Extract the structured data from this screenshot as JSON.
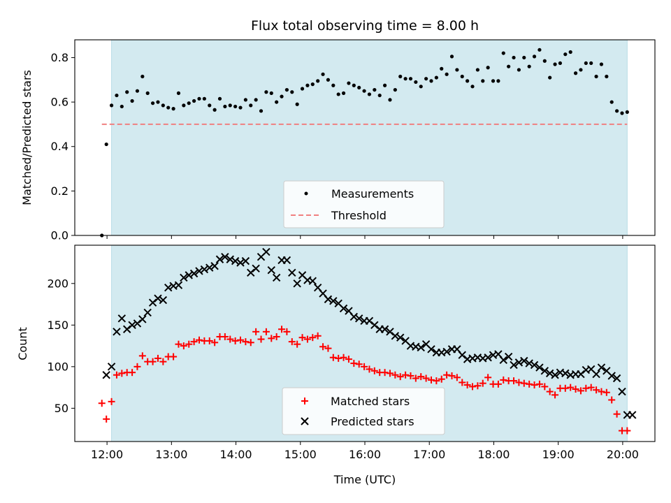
{
  "chart_data": [
    {
      "type": "scatter",
      "title": "Flux total observing time = 8.00 h",
      "xlabel": "",
      "ylabel": "Matched/Predicted stars",
      "xlim": [
        11.5,
        20.5
      ],
      "ylim": [
        0.0,
        0.88
      ],
      "yticks": [
        0.0,
        0.2,
        0.4,
        0.6,
        0.8
      ],
      "ytick_labels": [
        "0.0",
        "0.2",
        "0.4",
        "0.6",
        "0.8"
      ],
      "observing_window": [
        12.07,
        20.07
      ],
      "window_color": "#d3eaf0",
      "legend_position": "lower-center",
      "series": [
        {
          "name": "Measurements",
          "marker": "dot",
          "color": "#000000",
          "x": [
            11.92,
            11.99,
            12.07,
            12.15,
            12.23,
            12.31,
            12.39,
            12.47,
            12.55,
            12.63,
            12.71,
            12.79,
            12.87,
            12.95,
            13.03,
            13.11,
            13.19,
            13.27,
            13.35,
            13.43,
            13.51,
            13.59,
            13.67,
            13.75,
            13.83,
            13.91,
            13.99,
            14.07,
            14.15,
            14.23,
            14.31,
            14.39,
            14.47,
            14.55,
            14.63,
            14.71,
            14.79,
            14.87,
            14.95,
            15.03,
            15.11,
            15.19,
            15.27,
            15.35,
            15.43,
            15.51,
            15.59,
            15.67,
            15.75,
            15.83,
            15.91,
            15.99,
            16.07,
            16.15,
            16.23,
            16.31,
            16.39,
            16.47,
            16.55,
            16.63,
            16.71,
            16.79,
            16.87,
            16.95,
            17.03,
            17.11,
            17.19,
            17.27,
            17.35,
            17.43,
            17.51,
            17.59,
            17.67,
            17.75,
            17.83,
            17.91,
            17.99,
            18.07,
            18.15,
            18.23,
            18.31,
            18.39,
            18.47,
            18.55,
            18.63,
            18.71,
            18.79,
            18.87,
            18.95,
            19.03,
            19.11,
            19.19,
            19.27,
            19.35,
            19.43,
            19.51,
            19.59,
            19.67,
            19.75,
            19.83,
            19.91,
            19.99,
            20.07
          ],
          "y": [
            0.0,
            0.41,
            0.585,
            0.63,
            0.58,
            0.645,
            0.605,
            0.65,
            0.715,
            0.64,
            0.595,
            0.6,
            0.585,
            0.575,
            0.57,
            0.64,
            0.585,
            0.595,
            0.605,
            0.615,
            0.615,
            0.585,
            0.565,
            0.615,
            0.58,
            0.585,
            0.58,
            0.575,
            0.61,
            0.585,
            0.61,
            0.56,
            0.645,
            0.64,
            0.6,
            0.625,
            0.655,
            0.645,
            0.59,
            0.66,
            0.675,
            0.68,
            0.695,
            0.725,
            0.7,
            0.675,
            0.635,
            0.64,
            0.685,
            0.675,
            0.665,
            0.65,
            0.635,
            0.655,
            0.63,
            0.675,
            0.61,
            0.655,
            0.715,
            0.705,
            0.705,
            0.69,
            0.67,
            0.705,
            0.695,
            0.71,
            0.75,
            0.725,
            0.805,
            0.745,
            0.715,
            0.695,
            0.67,
            0.745,
            0.695,
            0.755,
            0.695,
            0.695,
            0.82,
            0.76,
            0.8,
            0.745,
            0.8,
            0.76,
            0.805,
            0.835,
            0.785,
            0.71,
            0.77,
            0.775,
            0.815,
            0.825,
            0.73,
            0.745,
            0.775,
            0.775,
            0.715,
            0.77,
            0.715,
            0.6,
            0.56,
            0.55,
            0.555
          ]
        },
        {
          "name": "Threshold",
          "style": "dashed",
          "color": "#f08080",
          "x": [
            11.92,
            20.07
          ],
          "y": [
            0.5,
            0.5
          ]
        }
      ]
    },
    {
      "type": "scatter",
      "title": "",
      "xlabel": "Time (UTC)",
      "ylabel": "Count",
      "xlim": [
        11.5,
        20.5
      ],
      "ylim": [
        10,
        246
      ],
      "yticks": [
        50,
        100,
        150,
        200
      ],
      "ytick_labels": [
        "50",
        "100",
        "150",
        "200"
      ],
      "xticks": [
        12,
        13,
        14,
        15,
        16,
        17,
        18,
        19,
        20
      ],
      "xtick_labels": [
        "12:00",
        "13:00",
        "14:00",
        "15:00",
        "16:00",
        "17:00",
        "18:00",
        "19:00",
        "20:00"
      ],
      "observing_window": [
        12.07,
        20.07
      ],
      "window_color": "#d3eaf0",
      "legend_position": "lower-center",
      "series": [
        {
          "name": "Matched stars",
          "marker": "plus",
          "color": "#ff0000",
          "x": [
            11.92,
            11.99,
            12.07,
            12.15,
            12.23,
            12.31,
            12.39,
            12.47,
            12.55,
            12.63,
            12.71,
            12.79,
            12.87,
            12.95,
            13.03,
            13.11,
            13.19,
            13.27,
            13.35,
            13.43,
            13.51,
            13.59,
            13.67,
            13.75,
            13.83,
            13.91,
            13.99,
            14.07,
            14.15,
            14.23,
            14.31,
            14.39,
            14.47,
            14.55,
            14.63,
            14.71,
            14.79,
            14.87,
            14.95,
            15.03,
            15.11,
            15.19,
            15.27,
            15.35,
            15.43,
            15.51,
            15.59,
            15.67,
            15.75,
            15.83,
            15.91,
            15.99,
            16.07,
            16.15,
            16.23,
            16.31,
            16.39,
            16.47,
            16.55,
            16.63,
            16.71,
            16.79,
            16.87,
            16.95,
            17.03,
            17.11,
            17.19,
            17.27,
            17.35,
            17.43,
            17.51,
            17.59,
            17.67,
            17.75,
            17.83,
            17.91,
            17.99,
            18.07,
            18.15,
            18.23,
            18.31,
            18.39,
            18.47,
            18.55,
            18.63,
            18.71,
            18.79,
            18.87,
            18.95,
            19.03,
            19.11,
            19.19,
            19.27,
            19.35,
            19.43,
            19.51,
            19.59,
            19.67,
            19.75,
            19.83,
            19.91,
            19.99,
            20.07
          ],
          "y": [
            56,
            37,
            58,
            90,
            92,
            93,
            93,
            100,
            113,
            106,
            106,
            110,
            106,
            112,
            112,
            127,
            125,
            127,
            130,
            132,
            131,
            131,
            129,
            136,
            136,
            133,
            131,
            132,
            130,
            129,
            142,
            133,
            142,
            134,
            136,
            145,
            142,
            130,
            127,
            135,
            133,
            135,
            137,
            124,
            122,
            111,
            110,
            111,
            109,
            104,
            103,
            100,
            97,
            95,
            93,
            93,
            92,
            90,
            88,
            90,
            89,
            86,
            88,
            86,
            84,
            83,
            85,
            90,
            89,
            87,
            81,
            78,
            76,
            77,
            80,
            87,
            79,
            79,
            84,
            83,
            83,
            81,
            80,
            79,
            78,
            79,
            76,
            70,
            66,
            74,
            74,
            75,
            73,
            71,
            74,
            75,
            72,
            70,
            69,
            60,
            43,
            23,
            23
          ]
        },
        {
          "name": "Predicted stars",
          "marker": "x",
          "color": "#000000",
          "x": [
            11.99,
            12.07,
            12.15,
            12.23,
            12.31,
            12.39,
            12.47,
            12.55,
            12.63,
            12.71,
            12.79,
            12.87,
            12.95,
            13.03,
            13.11,
            13.19,
            13.27,
            13.35,
            13.43,
            13.51,
            13.59,
            13.67,
            13.75,
            13.83,
            13.91,
            13.99,
            14.07,
            14.15,
            14.23,
            14.31,
            14.39,
            14.47,
            14.55,
            14.63,
            14.71,
            14.79,
            14.87,
            14.95,
            15.03,
            15.11,
            15.19,
            15.27,
            15.35,
            15.43,
            15.51,
            15.59,
            15.67,
            15.75,
            15.83,
            15.91,
            15.99,
            16.07,
            16.15,
            16.23,
            16.31,
            16.39,
            16.47,
            16.55,
            16.63,
            16.71,
            16.79,
            16.87,
            16.95,
            17.03,
            17.11,
            17.19,
            17.27,
            17.35,
            17.43,
            17.51,
            17.59,
            17.67,
            17.75,
            17.83,
            17.91,
            17.99,
            18.07,
            18.15,
            18.23,
            18.31,
            18.39,
            18.47,
            18.55,
            18.63,
            18.71,
            18.79,
            18.87,
            18.95,
            19.03,
            19.11,
            19.19,
            19.27,
            19.35,
            19.43,
            19.51,
            19.59,
            19.67,
            19.75,
            19.83,
            19.91,
            19.99,
            20.07,
            20.15
          ],
          "y": [
            90,
            100,
            142,
            158,
            145,
            150,
            152,
            157,
            165,
            177,
            182,
            180,
            195,
            197,
            198,
            207,
            210,
            212,
            215,
            217,
            219,
            221,
            229,
            232,
            229,
            227,
            225,
            227,
            213,
            218,
            232,
            238,
            216,
            207,
            228,
            228,
            213,
            200,
            210,
            204,
            203,
            195,
            188,
            181,
            179,
            176,
            170,
            167,
            160,
            158,
            155,
            155,
            150,
            145,
            145,
            142,
            137,
            135,
            131,
            125,
            124,
            123,
            127,
            121,
            117,
            117,
            118,
            121,
            121,
            114,
            109,
            110,
            111,
            110,
            111,
            114,
            115,
            108,
            112,
            102,
            105,
            107,
            104,
            102,
            99,
            95,
            92,
            90,
            93,
            92,
            90,
            91,
            91,
            96,
            97,
            91,
            99,
            95,
            89,
            86,
            70,
            42,
            42
          ]
        }
      ]
    }
  ]
}
